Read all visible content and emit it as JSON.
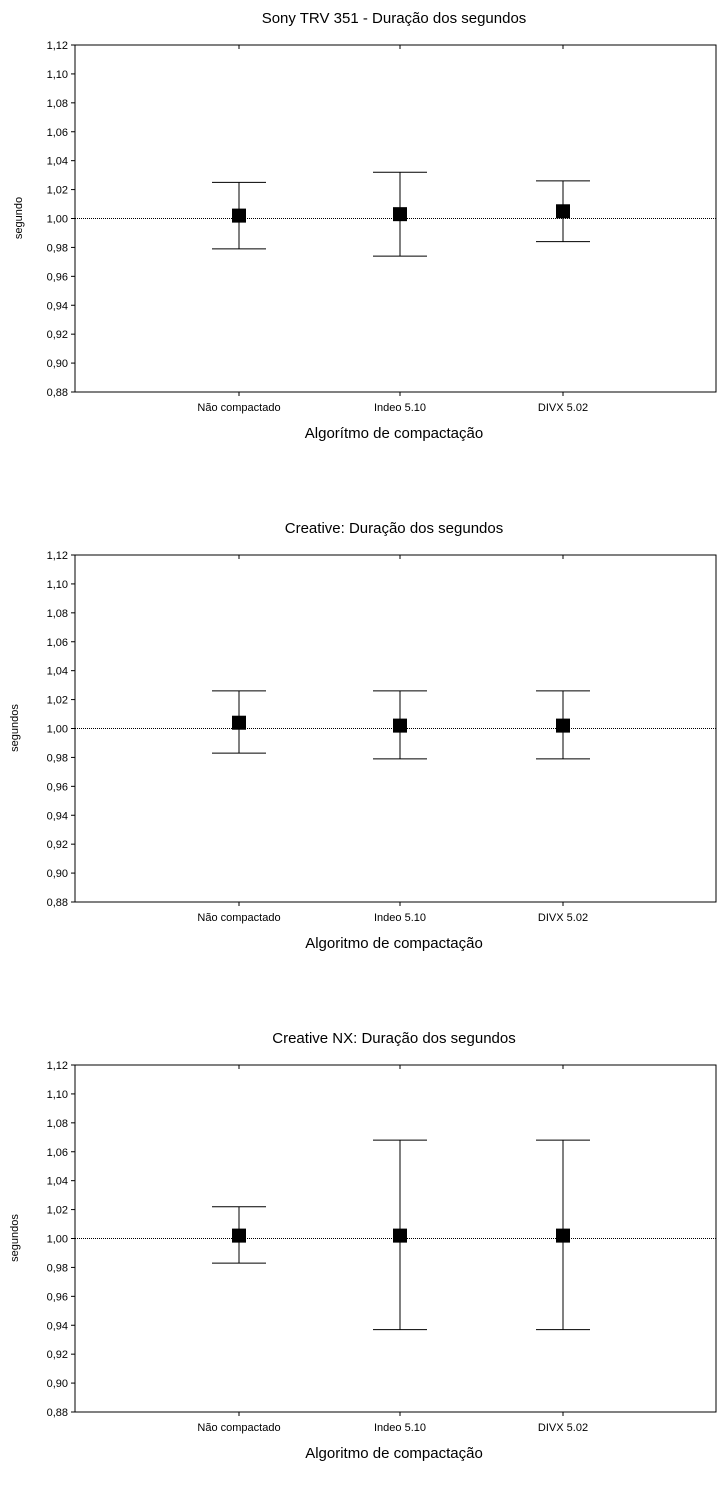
{
  "chart_data": [
    {
      "type": "scatter",
      "title": "Sony TRV 351 - Duração dos segundos",
      "xlabel": "Algorítmo de compactação",
      "ylabel": "segundo",
      "categories": [
        "Não compactado",
        "Indeo 5.10",
        "DIVX 5.02"
      ],
      "means": [
        1.002,
        1.003,
        1.005
      ],
      "lower": [
        0.979,
        0.974,
        0.984
      ],
      "upper": [
        1.025,
        1.032,
        1.026
      ],
      "reference_line": 1.0,
      "ylim": [
        0.88,
        1.12
      ],
      "yticks": [
        "0,88",
        "0,90",
        "0,92",
        "0,94",
        "0,96",
        "0,98",
        "1,00",
        "1,02",
        "1,04",
        "1,06",
        "1,08",
        "1,10",
        "1,12"
      ],
      "grid": false
    },
    {
      "type": "scatter",
      "title": "Creative: Duração dos segundos",
      "xlabel": "Algoritmo de compactação",
      "ylabel": "segundos",
      "categories": [
        "Não compactado",
        "Indeo 5.10",
        "DIVX 5.02"
      ],
      "means": [
        1.004,
        1.002,
        1.002
      ],
      "lower": [
        0.983,
        0.979,
        0.979
      ],
      "upper": [
        1.026,
        1.026,
        1.026
      ],
      "reference_line": 1.0,
      "ylim": [
        0.88,
        1.12
      ],
      "yticks": [
        "0,88",
        "0,90",
        "0,92",
        "0,94",
        "0,96",
        "0,98",
        "1,00",
        "1,02",
        "1,04",
        "1,06",
        "1,08",
        "1,10",
        "1,12"
      ],
      "grid": false
    },
    {
      "type": "scatter",
      "title": "Creative NX: Duração dos segundos",
      "xlabel": "Algoritmo de compactação",
      "ylabel": "segundos",
      "categories": [
        "Não compactado",
        "Indeo 5.10",
        "DIVX 5.02"
      ],
      "means": [
        1.002,
        1.002,
        1.002
      ],
      "lower": [
        0.983,
        0.937,
        0.937
      ],
      "upper": [
        1.022,
        1.068,
        1.068
      ],
      "reference_line": 1.0,
      "ylim": [
        0.88,
        1.12
      ],
      "yticks": [
        "0,88",
        "0,90",
        "0,92",
        "0,94",
        "0,96",
        "0,98",
        "1,00",
        "1,02",
        "1,04",
        "1,06",
        "1,08",
        "1,10",
        "1,12"
      ],
      "grid": false
    }
  ]
}
